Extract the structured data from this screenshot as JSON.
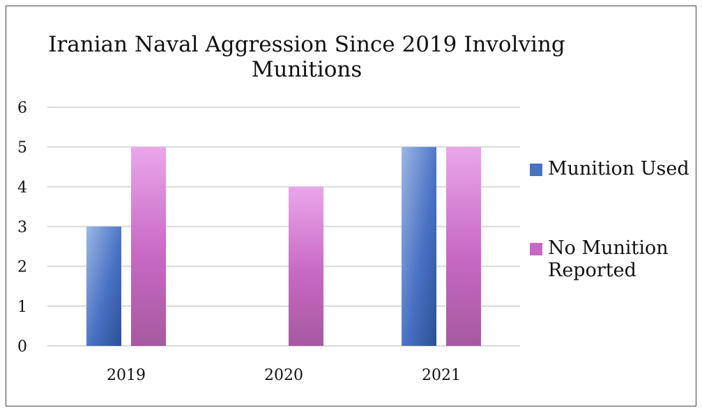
{
  "chart_data": {
    "type": "bar",
    "title": "Iranian Naval Aggression Since 2019 Involving Munitions",
    "title_lines": [
      "Iranian Naval Aggression Since 2019 Involving",
      "Munitions"
    ],
    "categories": [
      "2019",
      "2020",
      "2021"
    ],
    "series": [
      {
        "name": "Munition Used",
        "values": [
          3,
          0,
          5
        ],
        "color": "#4a72c4",
        "color_light": "#9db6e4",
        "color_dark": "#2c4f96"
      },
      {
        "name": "No Munition Reported",
        "values": [
          5,
          4,
          5
        ],
        "color": "#c768c4",
        "color_light": "#eaa6ea",
        "color_dark": "#a6599f"
      }
    ],
    "y_ticks": [
      "0",
      "1",
      "2",
      "3",
      "4",
      "5",
      "6"
    ],
    "ylim": [
      0,
      6
    ],
    "xlabel": "",
    "ylabel": "",
    "grid": true,
    "legend_position": "right"
  },
  "colors": {
    "gridline": "#d9d9d9",
    "frame": "#444444",
    "text": "#111111"
  }
}
